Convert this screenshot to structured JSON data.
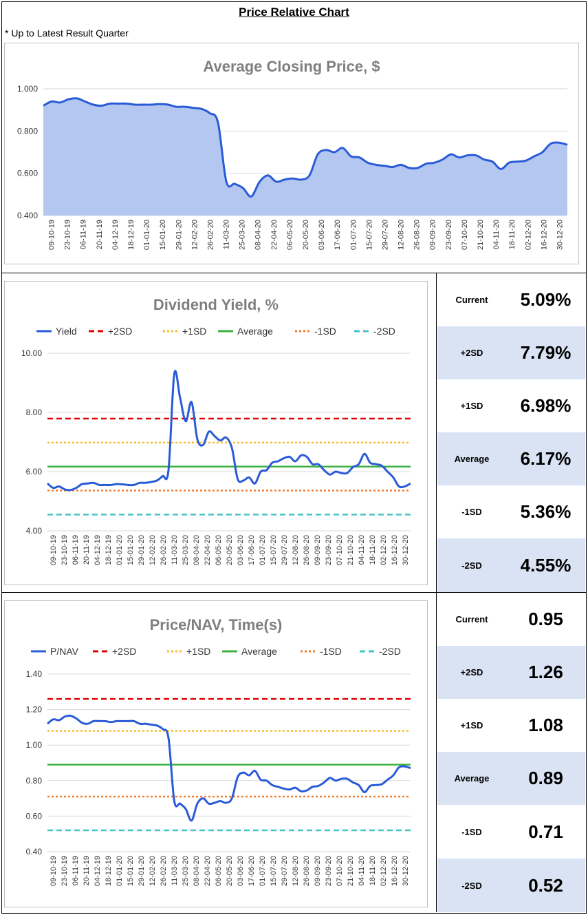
{
  "page": {
    "title": "Price Relative Chart",
    "note": "* Up to Latest Result Quarter"
  },
  "chart_data": [
    {
      "id": "price",
      "type": "area",
      "title": "Average Closing Price, $",
      "ylim": [
        0.4,
        1.0
      ],
      "yticks": [
        "0.400",
        "0.600",
        "0.800",
        "1.000"
      ],
      "ytick_values": [
        0.4,
        0.6,
        0.8,
        1.0
      ],
      "xticks": [
        "09-10-19",
        "23-10-19",
        "06-11-19",
        "20-11-19",
        "04-12-19",
        "18-12-19",
        "01-01-20",
        "15-01-20",
        "29-01-20",
        "12-02-20",
        "26-02-20",
        "11-03-20",
        "25-03-20",
        "08-04-20",
        "22-04-20",
        "06-05-20",
        "20-05-20",
        "03-06-20",
        "17-06-20",
        "01-07-20",
        "15-07-20",
        "29-07-20",
        "12-08-20",
        "26-08-20",
        "09-09-20",
        "23-09-20",
        "07-10-20",
        "21-10-20",
        "04-11-20",
        "18-11-20",
        "02-12-20",
        "16-12-20",
        "30-12-20"
      ],
      "colors": {
        "line": "#2a5bd7",
        "fill": "#b4c7f0"
      },
      "series": [
        {
          "name": "Price",
          "values": [
            0.92,
            0.94,
            0.935,
            0.95,
            0.955,
            0.94,
            0.925,
            0.92,
            0.93,
            0.93,
            0.93,
            0.925,
            0.925,
            0.925,
            0.928,
            0.925,
            0.915,
            0.915,
            0.91,
            0.905,
            0.885,
            0.84,
            0.56,
            0.55,
            0.53,
            0.49,
            0.56,
            0.59,
            0.56,
            0.57,
            0.575,
            0.57,
            0.59,
            0.69,
            0.71,
            0.7,
            0.72,
            0.68,
            0.675,
            0.65,
            0.64,
            0.635,
            0.63,
            0.64,
            0.625,
            0.625,
            0.645,
            0.65,
            0.665,
            0.69,
            0.675,
            0.685,
            0.685,
            0.665,
            0.655,
            0.62,
            0.65,
            0.655,
            0.66,
            0.68,
            0.7,
            0.74,
            0.745,
            0.735
          ]
        }
      ]
    },
    {
      "id": "yield",
      "type": "line",
      "title": "Dividend Yield, %",
      "ylim": [
        4.0,
        10.0
      ],
      "yticks": [
        "4.00",
        "6.00",
        "8.00",
        "10.00"
      ],
      "ytick_values": [
        4,
        6,
        8,
        10
      ],
      "xticks": [
        "09-10-19",
        "23-10-19",
        "06-11-19",
        "20-11-19",
        "04-12-19",
        "18-12-19",
        "01-01-20",
        "15-01-20",
        "29-01-20",
        "12-02-20",
        "26-02-20",
        "11-03-20",
        "25-03-20",
        "08-04-20",
        "22-04-20",
        "06-05-20",
        "20-05-20",
        "03-06-20",
        "17-06-20",
        "01-07-20",
        "15-07-20",
        "29-07-20",
        "12-08-20",
        "26-08-20",
        "09-09-20",
        "23-09-20",
        "07-10-20",
        "21-10-20",
        "04-11-20",
        "18-11-20",
        "02-12-20",
        "16-12-20",
        "30-12-20"
      ],
      "legend": [
        "Yield",
        "+2SD",
        "+1SD",
        "Average",
        "-1SD",
        "-2SD"
      ],
      "colors": {
        "series": "#2a5bd7",
        "plus2": "#e00000",
        "plus1": "#f5bf2c",
        "avg": "#3cb043",
        "minus1": "#ef7d31",
        "minus2": "#45c2c6"
      },
      "series": [
        {
          "name": "Yield",
          "values": [
            5.6,
            5.45,
            5.5,
            5.4,
            5.38,
            5.45,
            5.58,
            5.6,
            5.62,
            5.55,
            5.55,
            5.55,
            5.58,
            5.57,
            5.55,
            5.55,
            5.62,
            5.62,
            5.65,
            5.7,
            5.85,
            6.05,
            9.3,
            8.5,
            7.7,
            8.35,
            7.1,
            6.9,
            7.35,
            7.2,
            7.05,
            7.15,
            6.8,
            5.75,
            5.7,
            5.8,
            5.6,
            6.0,
            6.05,
            6.3,
            6.35,
            6.45,
            6.5,
            6.35,
            6.55,
            6.5,
            6.25,
            6.25,
            6.05,
            5.9,
            6.0,
            5.95,
            5.95,
            6.15,
            6.25,
            6.6,
            6.3,
            6.25,
            6.2,
            6.0,
            5.8,
            5.5,
            5.5,
            5.6
          ]
        }
      ],
      "reference_lines": {
        "plus2": 7.79,
        "plus1": 6.98,
        "avg": 6.17,
        "minus1": 5.36,
        "minus2": 4.55
      }
    },
    {
      "id": "pnav",
      "type": "line",
      "title": "Price/NAV, Time(s)",
      "ylim": [
        0.4,
        1.4
      ],
      "yticks": [
        "0.40",
        "0.60",
        "0.80",
        "1.00",
        "1.20",
        "1.40"
      ],
      "ytick_values": [
        0.4,
        0.6,
        0.8,
        1.0,
        1.2,
        1.4
      ],
      "xticks": [
        "09-10-19",
        "23-10-19",
        "06-11-19",
        "20-11-19",
        "04-12-19",
        "18-12-19",
        "01-01-20",
        "15-01-20",
        "29-01-20",
        "12-02-20",
        "26-02-20",
        "11-03-20",
        "25-03-20",
        "08-04-20",
        "22-04-20",
        "06-05-20",
        "20-05-20",
        "03-06-20",
        "17-06-20",
        "01-07-20",
        "15-07-20",
        "29-07-20",
        "12-08-20",
        "26-08-20",
        "09-09-20",
        "23-09-20",
        "07-10-20",
        "21-10-20",
        "04-11-20",
        "18-11-20",
        "02-12-20",
        "16-12-20",
        "30-12-20"
      ],
      "legend": [
        "P/NAV",
        "+2SD",
        "+1SD",
        "Average",
        "-1SD",
        "-2SD"
      ],
      "colors": {
        "series": "#2a5bd7",
        "plus2": "#e00000",
        "plus1": "#f5bf2c",
        "avg": "#3cb043",
        "minus1": "#ef7d31",
        "minus2": "#45c2c6"
      },
      "series": [
        {
          "name": "P/NAV",
          "values": [
            1.12,
            1.145,
            1.14,
            1.16,
            1.165,
            1.15,
            1.125,
            1.12,
            1.135,
            1.135,
            1.135,
            1.13,
            1.135,
            1.135,
            1.135,
            1.135,
            1.12,
            1.12,
            1.115,
            1.11,
            1.09,
            1.04,
            0.685,
            0.67,
            0.64,
            0.575,
            0.67,
            0.7,
            0.67,
            0.675,
            0.685,
            0.675,
            0.7,
            0.82,
            0.845,
            0.83,
            0.855,
            0.805,
            0.8,
            0.775,
            0.765,
            0.755,
            0.75,
            0.76,
            0.74,
            0.745,
            0.765,
            0.77,
            0.79,
            0.815,
            0.8,
            0.81,
            0.81,
            0.79,
            0.775,
            0.735,
            0.77,
            0.775,
            0.78,
            0.805,
            0.83,
            0.875,
            0.88,
            0.87
          ]
        }
      ],
      "reference_lines": {
        "plus2": 1.26,
        "plus1": 1.08,
        "avg": 0.89,
        "minus1": 0.71,
        "minus2": 0.52
      }
    }
  ],
  "yield_stats": [
    {
      "label": "Current",
      "value": "5.09%"
    },
    {
      "label": "+2SD",
      "value": "7.79%"
    },
    {
      "label": "+1SD",
      "value": "6.98%"
    },
    {
      "label": "Average",
      "value": "6.17%"
    },
    {
      "label": "-1SD",
      "value": "5.36%"
    },
    {
      "label": "-2SD",
      "value": "4.55%"
    }
  ],
  "pnav_stats": [
    {
      "label": "Current",
      "value": "0.95"
    },
    {
      "label": "+2SD",
      "value": "1.26"
    },
    {
      "label": "+1SD",
      "value": "1.08"
    },
    {
      "label": "Average",
      "value": "0.89"
    },
    {
      "label": "-1SD",
      "value": "0.71"
    },
    {
      "label": "-2SD",
      "value": "0.52"
    }
  ]
}
